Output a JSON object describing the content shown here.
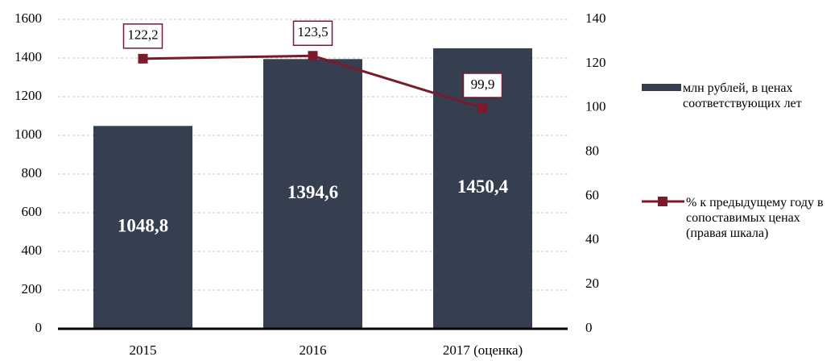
{
  "chart_data": {
    "type": "bar",
    "categories": [
      "2015",
      "2016",
      "2017 (оценка)"
    ],
    "series": [
      {
        "name": "млн рублей, в ценах соответствующих лет",
        "type": "bar",
        "color": "#353f50",
        "values": [
          1048.8,
          1394.6,
          1450.4
        ],
        "value_labels": [
          "1048,8",
          "1394,6",
          "1450,4"
        ]
      },
      {
        "name": "% к предыдущему году в сопоставимых ценах (правая шкала)",
        "type": "line",
        "axis": "y2",
        "color": "#7a1a2b",
        "values": [
          122.2,
          123.5,
          99.9
        ],
        "value_labels": [
          "122,2",
          "123,5",
          "99,9"
        ]
      }
    ],
    "ylim": [
      0,
      1600
    ],
    "yticks": [
      0,
      200,
      400,
      600,
      800,
      1000,
      1200,
      1400,
      1600
    ],
    "y2lim": [
      0,
      140
    ],
    "y2ticks": [
      0,
      20,
      40,
      60,
      80,
      100,
      120,
      140
    ],
    "grid": true,
    "legend": "right"
  }
}
